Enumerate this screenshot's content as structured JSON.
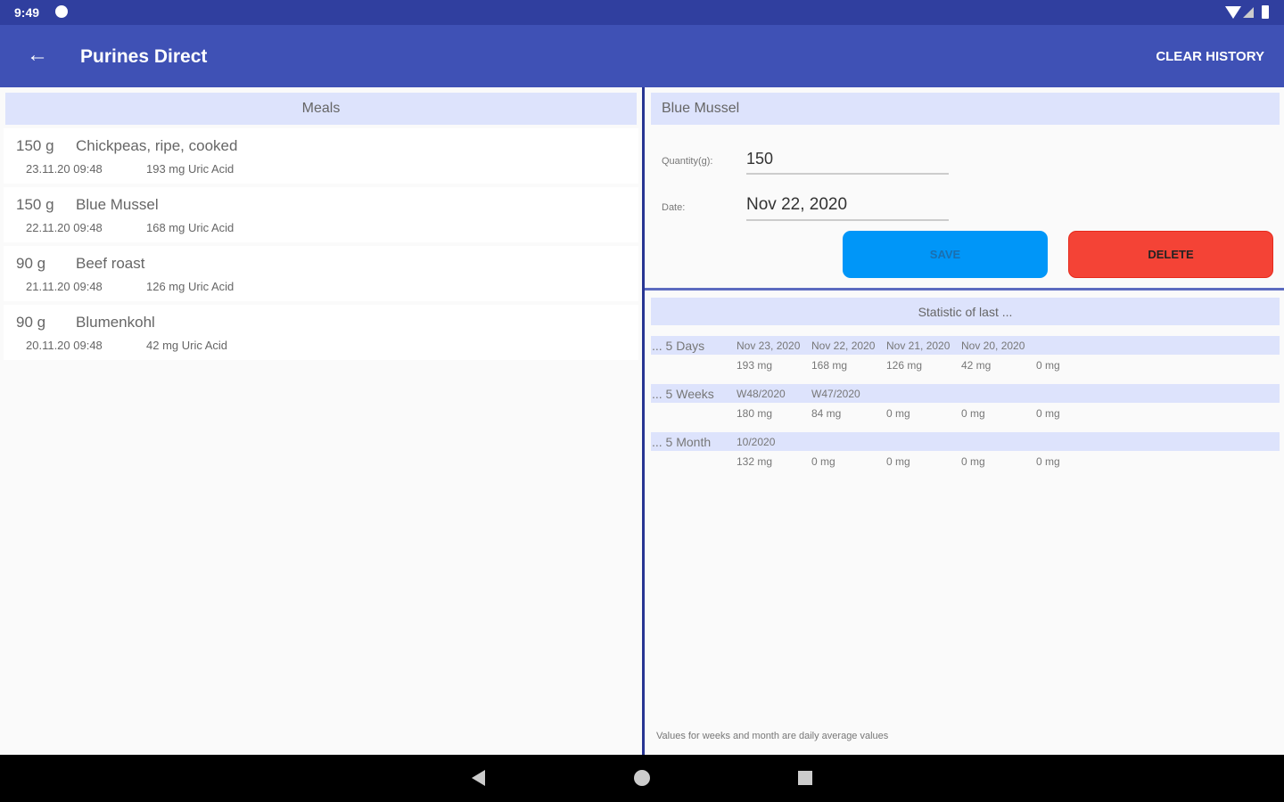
{
  "status_bar": {
    "time": "9:49"
  },
  "app_bar": {
    "title": "Purines Direct",
    "clear_history": "CLEAR HISTORY"
  },
  "meals": {
    "header": "Meals",
    "items": [
      {
        "quantity": "150 g",
        "name": "Chickpeas, ripe, cooked",
        "date": "23.11.20 09:48",
        "uric": "193 mg Uric Acid"
      },
      {
        "quantity": "150 g",
        "name": "Blue Mussel",
        "date": "22.11.20 09:48",
        "uric": "168 mg Uric Acid"
      },
      {
        "quantity": "90 g",
        "name": "Beef roast",
        "date": "21.11.20 09:48",
        "uric": "126 mg Uric Acid"
      },
      {
        "quantity": "90 g",
        "name": "Blumenkohl",
        "date": "20.11.20 09:48",
        "uric": "42 mg Uric Acid"
      }
    ]
  },
  "detail": {
    "title": "Blue Mussel",
    "quantity_label": "Quantity(g):",
    "quantity_value": "150",
    "date_label": "Date:",
    "date_value": "Nov 22, 2020",
    "save": "SAVE",
    "delete": "DELETE"
  },
  "statistics": {
    "header": "Statistic of last ...",
    "rows": [
      {
        "label": "... 5 Days",
        "periods": [
          "Nov 23, 2020",
          "Nov 22, 2020",
          "Nov 21, 2020",
          "Nov 20, 2020"
        ],
        "values": [
          "193 mg",
          "168 mg",
          "126 mg",
          "42 mg",
          "0 mg"
        ]
      },
      {
        "label": "... 5 Weeks",
        "periods": [
          "W48/2020",
          "W47/2020"
        ],
        "values": [
          "180 mg",
          "84 mg",
          "0 mg",
          "0 mg",
          "0 mg"
        ]
      },
      {
        "label": "... 5 Month",
        "periods": [
          "10/2020"
        ],
        "values": [
          "132 mg",
          "0 mg",
          "0 mg",
          "0 mg",
          "0 mg"
        ]
      }
    ],
    "footnote": "Values for weeks and month are daily average values"
  },
  "colors": {
    "primary": "#3f51b5",
    "primary_dark": "#303f9f",
    "save": "#0096f8",
    "delete": "#f44336"
  }
}
